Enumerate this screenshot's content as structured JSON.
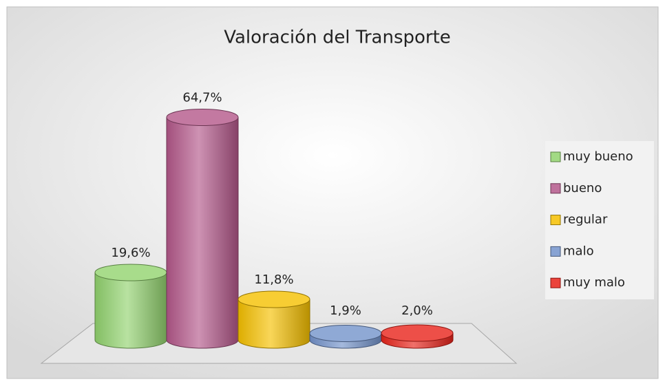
{
  "chart_data": {
    "type": "bar3d",
    "title": "Valoración del Transporte",
    "categories": [
      "muy bueno",
      "bueno",
      "regular",
      "malo",
      "muy malo"
    ],
    "values": [
      19.6,
      64.7,
      11.8,
      1.9,
      2.0
    ],
    "value_labels": [
      "19,6%",
      "64,7%",
      "11,8%",
      "1,9%",
      "2,0%"
    ],
    "colors": [
      "#92d36e",
      "#b4588a",
      "#f5c000",
      "#7393cb",
      "#e8231a"
    ],
    "legend": "right"
  }
}
